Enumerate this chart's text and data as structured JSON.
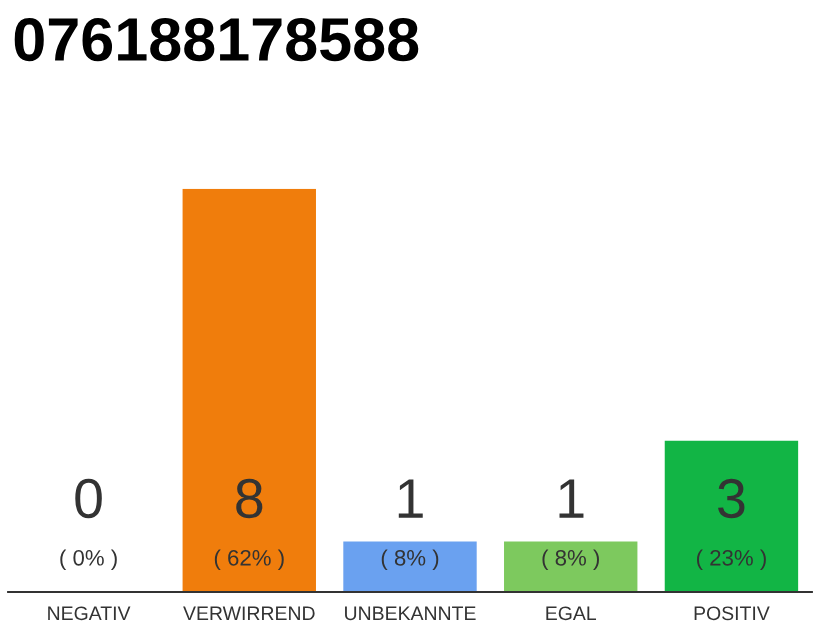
{
  "chart_data": {
    "type": "bar",
    "title": "076188178588",
    "categories": [
      "NEGATIV",
      "VERWIRREND",
      "UNBEKANNTE",
      "EGAL",
      "POSITIV"
    ],
    "values": [
      0,
      8,
      1,
      1,
      3
    ],
    "colors": [
      "#bbbbbb",
      "#f07d0c",
      "#6aa1f0",
      "#7dc95e",
      "#12b545"
    ],
    "value_labels": [
      "0\n( 0% )",
      "8\n( 62% )",
      "1\n( 8% )",
      "1\n( 8% )",
      "3\n( 23% )"
    ],
    "grid": false,
    "legend": false
  }
}
